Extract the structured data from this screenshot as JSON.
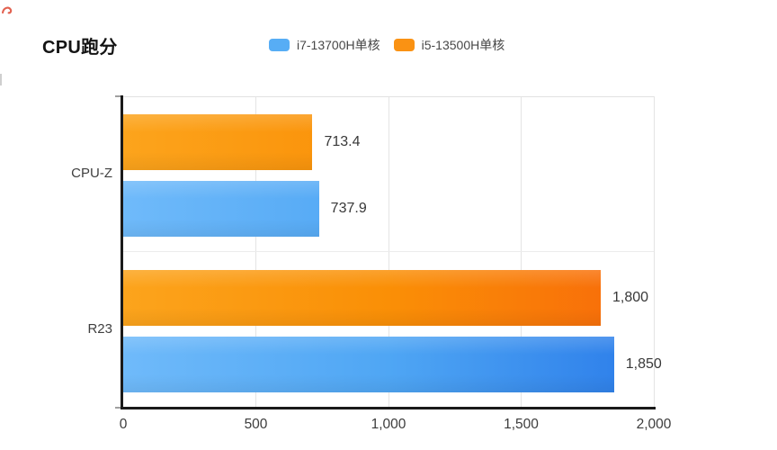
{
  "title": "CPU跑分",
  "legend": {
    "items": [
      {
        "label": "i7-13700H单核",
        "swatch_color": "#57ADF5"
      },
      {
        "label": "i5-13500H单核",
        "swatch_color": "#FA9213"
      }
    ]
  },
  "chart_data": {
    "type": "bar",
    "orientation": "horizontal",
    "title": "CPU跑分",
    "categories": [
      "CPU-Z",
      "R23"
    ],
    "series": [
      {
        "name": "i7-13700H单核",
        "values": [
          737.9,
          1850
        ],
        "value_labels": [
          "737.9",
          "1,850"
        ],
        "color_start": "#6FBAFA",
        "color_mid": "#4FA6F4",
        "color_end": "#2B7CE9"
      },
      {
        "name": "i5-13500H单核",
        "values": [
          713.4,
          1800
        ],
        "value_labels": [
          "713.4",
          "1,800"
        ],
        "color_start": "#FCA41C",
        "color_mid": "#FA8F06",
        "color_end": "#F8690A"
      }
    ],
    "xlim": [
      0,
      2000
    ],
    "x_ticks": [
      {
        "value": 0,
        "label": "0"
      },
      {
        "value": 500,
        "label": "500"
      },
      {
        "value": 1000,
        "label": "1,000"
      },
      {
        "value": 1500,
        "label": "1,500"
      },
      {
        "value": 2000,
        "label": "2,000"
      }
    ],
    "grid": "vertical",
    "legend_position": "top",
    "bar_order_in_group": [
      "i5-13500H单核",
      "i7-13700H单核"
    ]
  }
}
